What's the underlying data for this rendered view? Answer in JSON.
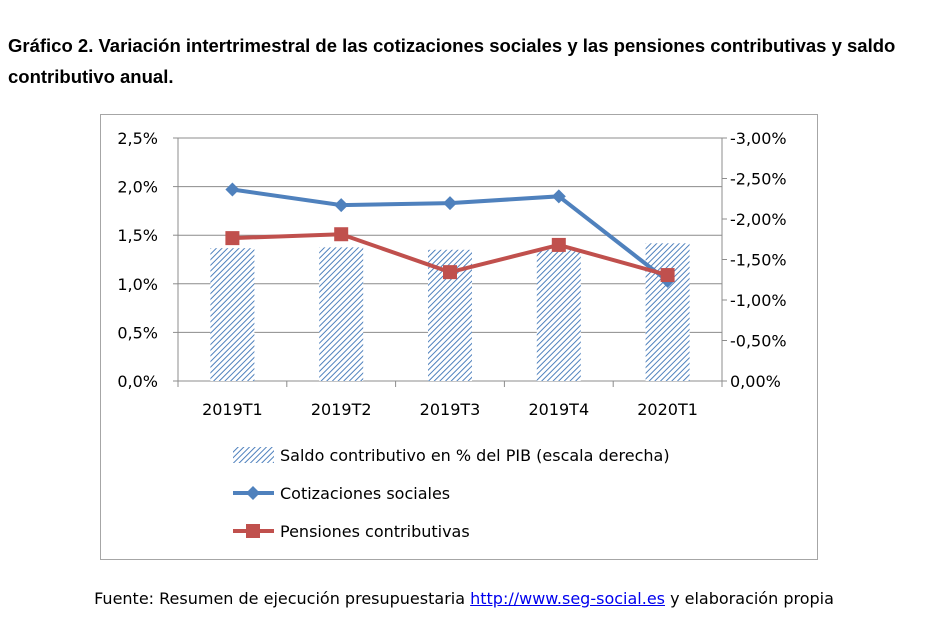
{
  "title": "Gráfico 2. Variación intertrimestral de las cotizaciones sociales y las pensiones contributivas y saldo contributivo anual.",
  "source": {
    "prefix": "Fuente: Resumen de ejecución presupuestaria ",
    "link": "http://www.seg-social.es",
    "suffix": " y elaboración propia"
  },
  "chart_data": {
    "type": "bar+line",
    "categories": [
      "2019T1",
      "2019T2",
      "2019T3",
      "2019T4",
      "2020T1"
    ],
    "left_axis": {
      "ylim": [
        0,
        2.5
      ],
      "ticks": [
        "0,0%",
        "0,5%",
        "1,0%",
        "1,5%",
        "2,0%",
        "2,5%"
      ]
    },
    "right_axis": {
      "ylim": [
        0,
        -3.0
      ],
      "reversed": true,
      "ticks": [
        "0,00%",
        "-0,50%",
        "-1,00%",
        "-1,50%",
        "-2,00%",
        "-2,50%",
        "-3,00%"
      ]
    },
    "grid": true,
    "legend_position": "bottom",
    "series": [
      {
        "name": "Saldo contributivo en % del PIB (escala derecha)",
        "type": "bar",
        "axis": "right",
        "color": "#4f81bd",
        "pattern": "diagonal-hatch",
        "values": [
          -1.64,
          -1.65,
          -1.62,
          -1.62,
          -1.7
        ]
      },
      {
        "name": "Cotizaciones sociales",
        "type": "line",
        "axis": "left",
        "color": "#4f81bd",
        "marker": "diamond",
        "values": [
          1.97,
          1.81,
          1.83,
          1.9,
          1.03
        ]
      },
      {
        "name": "Pensiones contributivas",
        "type": "line",
        "axis": "left",
        "color": "#c0504d",
        "marker": "square",
        "values": [
          1.47,
          1.51,
          1.12,
          1.4,
          1.09
        ]
      }
    ]
  }
}
